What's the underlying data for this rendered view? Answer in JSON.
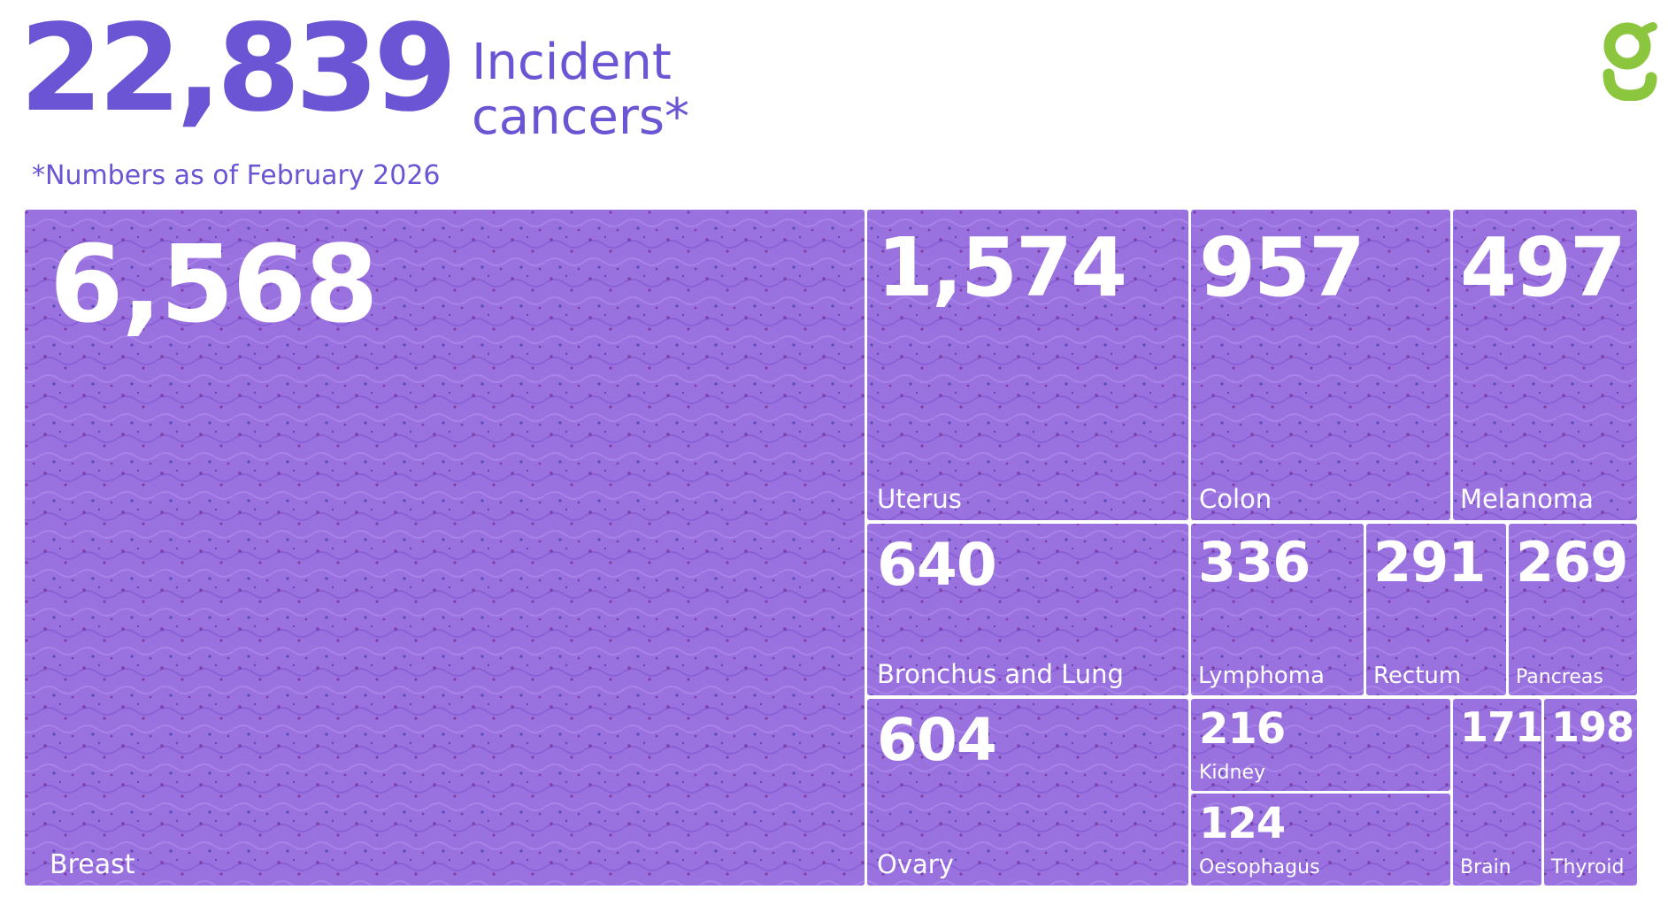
{
  "header": {
    "total": "22,839",
    "label_line1": "Incident",
    "label_line2": "cancers*",
    "footnote": "*Numbers as of February 2026"
  },
  "logo": {
    "icon": "g-logo-icon",
    "color": "#8cc63f"
  },
  "colors": {
    "accent": "#6c55d4",
    "tile_fill": "#9a72e0",
    "tile_text": "#ffffff"
  },
  "chart_data": {
    "type": "treemap",
    "title": "",
    "categories": [
      "Breast",
      "Uterus",
      "Colon",
      "Melanoma",
      "Bronchus and Lung",
      "Lymphoma",
      "Rectum",
      "Pancreas",
      "Ovary",
      "Kidney",
      "Oesophagus",
      "Brain",
      "Thyroid"
    ],
    "values": [
      6568,
      1574,
      957,
      497,
      640,
      336,
      291,
      269,
      604,
      216,
      124,
      171,
      198
    ],
    "value_labels": [
      "6,568",
      "1,574",
      "957",
      "497",
      "640",
      "336",
      "291",
      "269",
      "604",
      "216",
      "124",
      "171",
      "198"
    ]
  }
}
